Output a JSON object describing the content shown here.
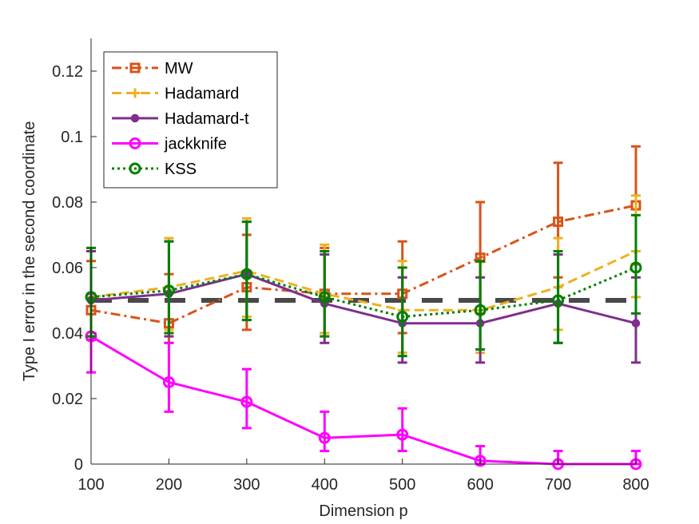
{
  "chart_data": {
    "type": "line",
    "title": "",
    "xlabel": "Dimension p",
    "ylabel": "Type I error in the second coordinate",
    "xlim": [
      100,
      800
    ],
    "ylim": [
      0,
      0.13
    ],
    "xticks": [
      100,
      200,
      300,
      400,
      500,
      600,
      700,
      800
    ],
    "yticks": [
      0,
      0.02,
      0.04,
      0.06,
      0.08,
      0.1,
      0.12
    ],
    "xtick_labels": [
      "100",
      "200",
      "300",
      "400",
      "500",
      "600",
      "700",
      "800"
    ],
    "ytick_labels": [
      "0",
      "0.02",
      "0.04",
      "0.06",
      "0.08",
      "0.1",
      "0.12"
    ],
    "grid": false,
    "legend_position": "top-left",
    "reference_line": {
      "y": 0.05,
      "style": "dashed",
      "color": "#404040"
    },
    "x": [
      100,
      200,
      300,
      400,
      500,
      600,
      700,
      800
    ],
    "series": [
      {
        "name": "MW",
        "color": "#D95319",
        "dash": "dashdot",
        "marker": "square",
        "values": [
          0.047,
          0.043,
          0.054,
          0.052,
          0.052,
          0.063,
          0.074,
          0.079
        ],
        "err_low": [
          0.039,
          0.037,
          0.041,
          0.04,
          0.04,
          0.046,
          0.057,
          0.061
        ],
        "err_high": [
          0.062,
          0.058,
          0.07,
          0.066,
          0.068,
          0.08,
          0.092,
          0.097
        ]
      },
      {
        "name": "Hadamard",
        "color": "#EDB120",
        "dash": "dashed",
        "marker": "plus",
        "values": [
          0.051,
          0.054,
          0.059,
          0.052,
          0.047,
          0.047,
          0.054,
          0.065
        ],
        "err_low": [
          0.039,
          0.041,
          0.045,
          0.04,
          0.034,
          0.034,
          0.041,
          0.051
        ],
        "err_high": [
          0.066,
          0.069,
          0.075,
          0.067,
          0.062,
          0.062,
          0.069,
          0.082
        ]
      },
      {
        "name": "Hadamard-t",
        "color": "#7E2F8E",
        "dash": "solid",
        "marker": "dot",
        "values": [
          0.05,
          0.052,
          0.058,
          0.049,
          0.043,
          0.043,
          0.049,
          0.043
        ],
        "err_low": [
          0.038,
          0.039,
          0.044,
          0.037,
          0.031,
          0.031,
          0.037,
          0.031
        ],
        "err_high": [
          0.065,
          0.068,
          0.074,
          0.064,
          0.057,
          0.057,
          0.064,
          0.057
        ]
      },
      {
        "name": "jackknife",
        "color": "#FF00FF",
        "dash": "solid",
        "marker": "circle",
        "values": [
          0.039,
          0.025,
          0.019,
          0.008,
          0.009,
          0.001,
          0.0,
          0.0
        ],
        "err_low": [
          0.028,
          0.016,
          0.011,
          0.004,
          0.004,
          0.0,
          0.0,
          0.0
        ],
        "err_high": [
          0.052,
          0.037,
          0.029,
          0.016,
          0.017,
          0.0055,
          0.004,
          0.004
        ]
      },
      {
        "name": "KSS",
        "color": "#008000",
        "dash": "dotted",
        "marker": "circle",
        "values": [
          0.051,
          0.053,
          0.058,
          0.051,
          0.045,
          0.047,
          0.05,
          0.06
        ],
        "err_low": [
          0.039,
          0.04,
          0.044,
          0.039,
          0.033,
          0.035,
          0.037,
          0.046
        ],
        "err_high": [
          0.066,
          0.068,
          0.074,
          0.065,
          0.06,
          0.062,
          0.065,
          0.076
        ]
      }
    ]
  }
}
